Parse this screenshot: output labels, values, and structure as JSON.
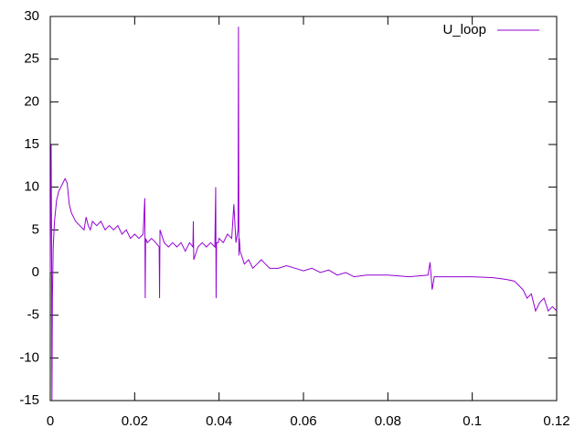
{
  "chart_data": {
    "type": "line",
    "x": [
      0,
      0.0002,
      0.0003,
      0.0004,
      0.0005,
      0.0007,
      0.001,
      0.0015,
      0.002,
      0.0025,
      0.003,
      0.0035,
      0.004,
      0.0045,
      0.005,
      0.006,
      0.007,
      0.008,
      0.0085,
      0.009,
      0.0095,
      0.01,
      0.011,
      0.012,
      0.013,
      0.014,
      0.015,
      0.016,
      0.017,
      0.018,
      0.019,
      0.02,
      0.021,
      0.022,
      0.0224,
      0.0225,
      0.0226,
      0.023,
      0.024,
      0.025,
      0.0258,
      0.0259,
      0.026,
      0.027,
      0.028,
      0.029,
      0.03,
      0.031,
      0.032,
      0.033,
      0.0338,
      0.0339,
      0.034,
      0.035,
      0.036,
      0.037,
      0.038,
      0.039,
      0.0392,
      0.0393,
      0.0394,
      0.0398,
      0.04,
      0.041,
      0.042,
      0.043,
      0.0435,
      0.044,
      0.0445,
      0.0446,
      0.0447,
      0.0448,
      0.045,
      0.046,
      0.047,
      0.048,
      0.049,
      0.05,
      0.051,
      0.052,
      0.054,
      0.056,
      0.058,
      0.06,
      0.062,
      0.064,
      0.066,
      0.068,
      0.07,
      0.072,
      0.075,
      0.08,
      0.085,
      0.0895,
      0.09,
      0.0905,
      0.091,
      0.095,
      0.1,
      0.105,
      0.108,
      0.11,
      0.111,
      0.112,
      0.113,
      0.114,
      0.115,
      0.116,
      0.117,
      0.118,
      0.119,
      0.12
    ],
    "values": [
      0,
      15,
      5,
      -15,
      -3,
      3,
      6,
      8.5,
      9.5,
      10,
      10.5,
      11,
      10.5,
      8,
      7,
      6,
      5.5,
      5,
      6.5,
      5.5,
      5,
      6,
      5.5,
      6,
      5,
      5.5,
      5,
      5.5,
      4.5,
      5,
      4,
      4.5,
      4,
      4.5,
      8.7,
      -3,
      4,
      3.5,
      4,
      3.5,
      3,
      -3,
      5,
      3.5,
      3,
      3.5,
      3,
      3.5,
      2.5,
      3.5,
      3,
      6,
      1.5,
      3,
      3.5,
      3,
      3.5,
      3,
      10,
      -3,
      3.5,
      3.5,
      4,
      3.5,
      4.5,
      4,
      8,
      3.5,
      5,
      28.8,
      2,
      4,
      2.5,
      1,
      1.5,
      0.5,
      1,
      1.5,
      1,
      0.5,
      0.5,
      0.8,
      0.5,
      0.2,
      0.5,
      0,
      0.3,
      -0.3,
      0,
      -0.5,
      -0.3,
      -0.3,
      -0.5,
      -0.3,
      1.2,
      -2,
      -0.5,
      -0.5,
      -0.5,
      -0.6,
      -0.8,
      -1,
      -1.5,
      -2,
      -3,
      -2.5,
      -4.5,
      -3.5,
      -3,
      -4.5,
      -4,
      -4.5
    ],
    "series_name": "U_loop",
    "color": "#9400d3",
    "xlim": [
      0,
      0.12
    ],
    "xticks": [
      0,
      0.02,
      0.04,
      0.06,
      0.08,
      0.1,
      0.12
    ],
    "ylim": [
      -15,
      30
    ],
    "yticks": [
      -15,
      -10,
      -5,
      0,
      5,
      10,
      15,
      20,
      25,
      30
    ]
  }
}
